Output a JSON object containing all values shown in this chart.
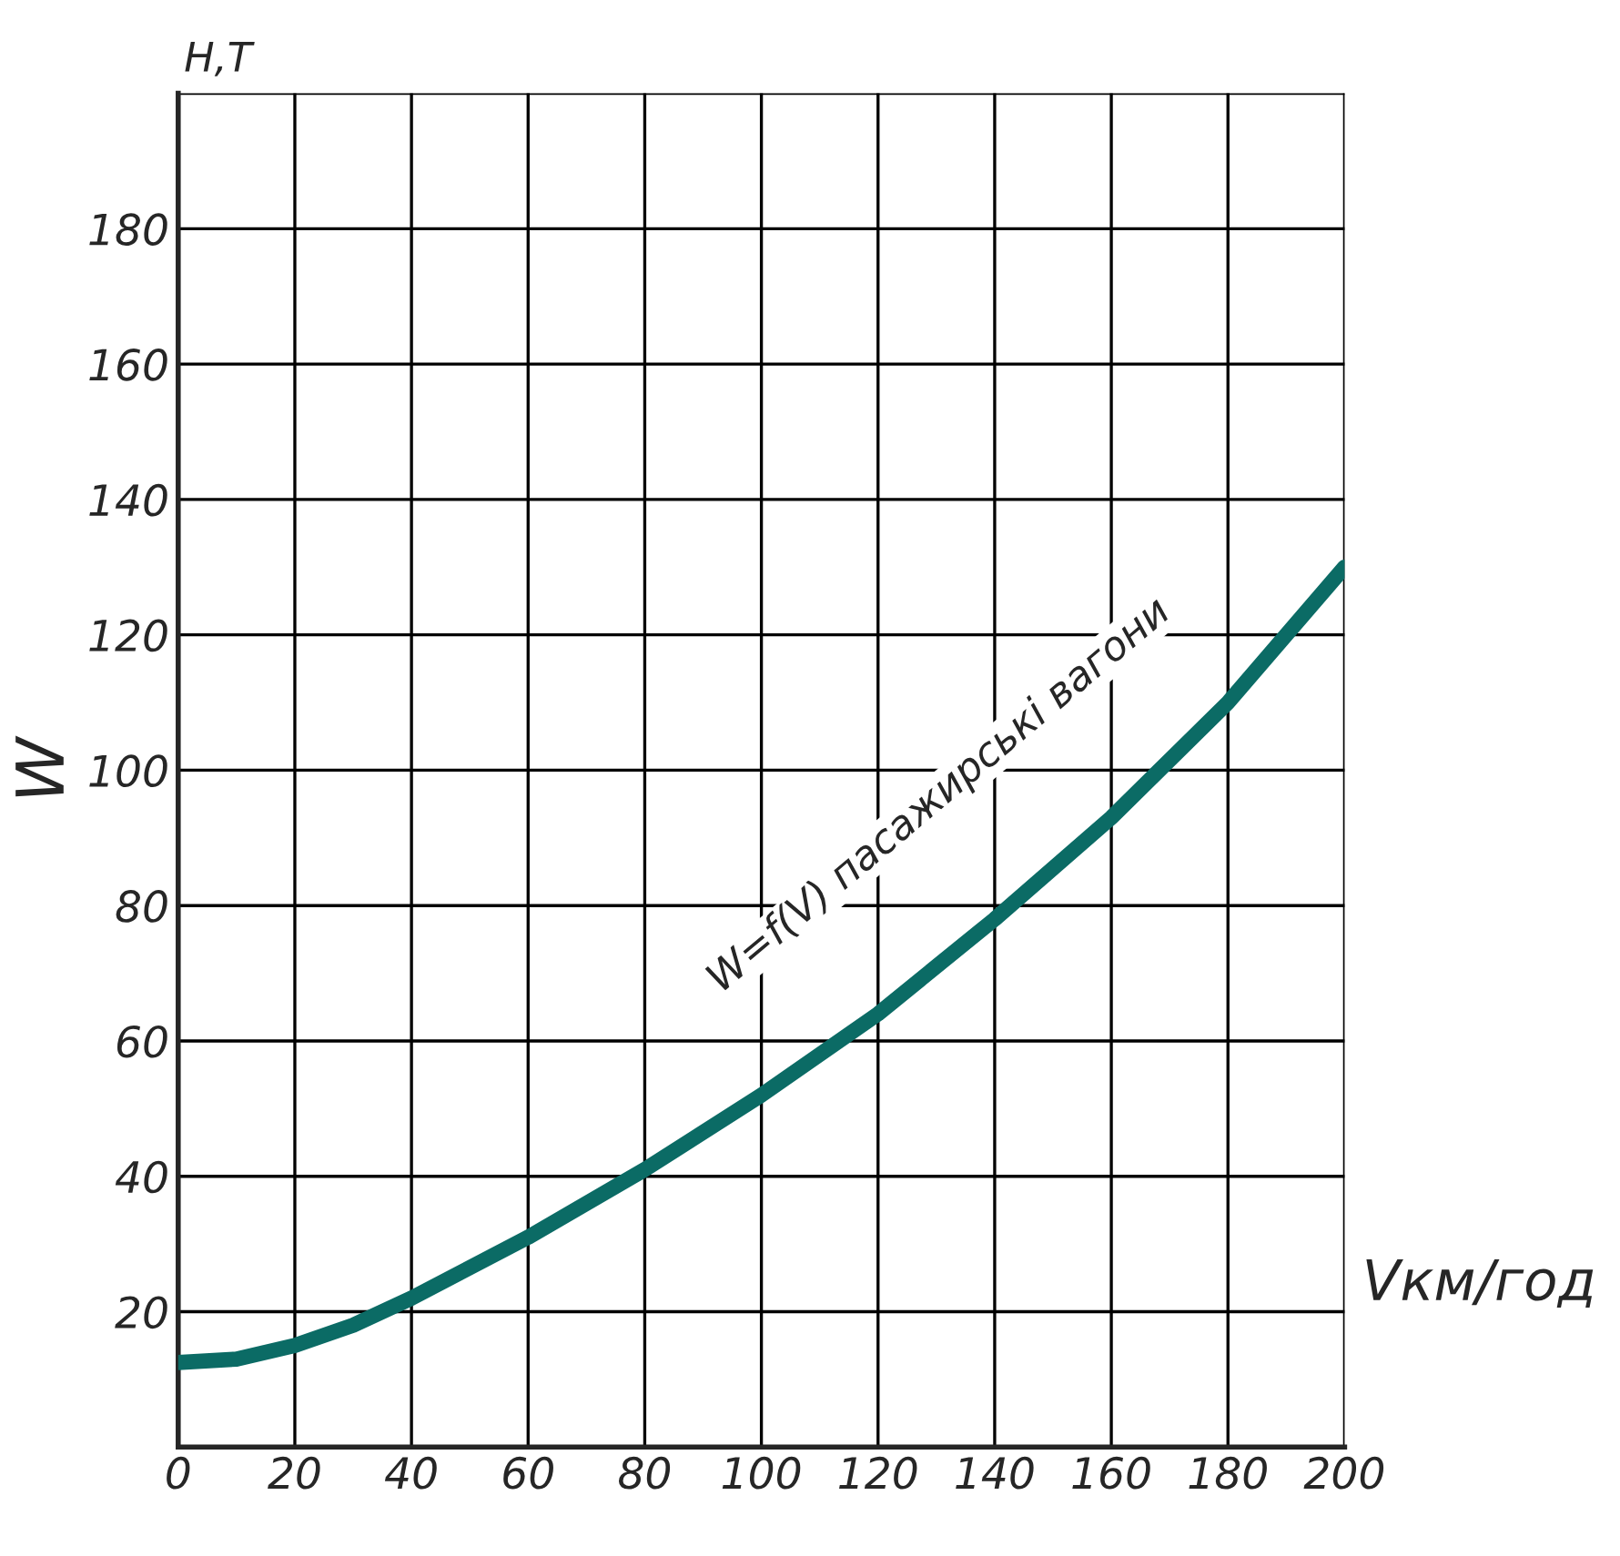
{
  "chart_data": {
    "type": "line",
    "xlabel": "Vкм/год",
    "ylabel": "W",
    "x": [
      0,
      10,
      20,
      30,
      40,
      60,
      80,
      100,
      120,
      140,
      160,
      180,
      200
    ],
    "series": [
      {
        "color": "#0b6b65",
        "values": [
          12.5,
          13,
          15,
          18,
          22,
          31,
          41,
          52,
          64,
          78,
          93,
          110,
          130
        ]
      }
    ],
    "xlim": [
      0,
      200
    ],
    "ylim": [
      0,
      200
    ],
    "xticks": [
      0,
      20,
      40,
      60,
      80,
      100,
      120,
      140,
      160,
      180,
      200
    ],
    "yticks": [
      {
        "value": 0,
        "label": null
      },
      20,
      40,
      60,
      80,
      100,
      120,
      140,
      160,
      180,
      {
        "value": 200,
        "label": null
      }
    ],
    "annotations": [
      "Н,Т",
      "W=f(V) пасажирські вагони"
    ],
    "grid": true,
    "legend": false,
    "marker": "none",
    "line_style": "solid"
  }
}
